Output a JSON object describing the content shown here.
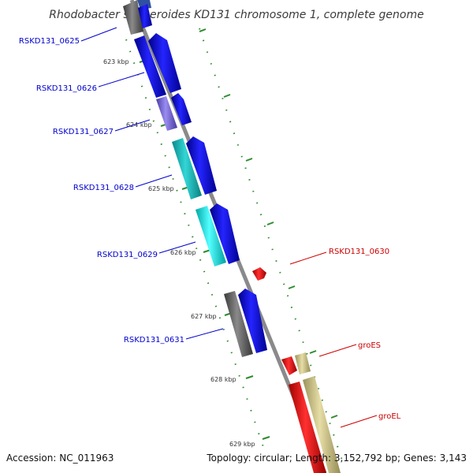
{
  "title": "Rhodobacter sphaeroides KD131 chromosome 1, complete genome",
  "footer": {
    "accession": "Accession: NC_011963",
    "topology": "Topology: circular; Length: 3,152,792 bp; Genes: 3,143"
  },
  "ruler_labels": [
    "623 kbp",
    "624 kbp",
    "625 kbp",
    "626 kbp",
    "627 kbp",
    "628 kbp",
    "629 kbp"
  ],
  "gene_labels": {
    "rskd131_0625": "RSKD131_0625",
    "rskd131_0626": "RSKD131_0626",
    "rskd131_0627": "RSKD131_0627",
    "rskd131_0628": "RSKD131_0628",
    "rskd131_0629": "RSKD131_0629",
    "rskd131_0630": "RSKD131_0630",
    "rskd131_0631": "RSKD131_0631",
    "groES": "groES",
    "groEL": "groEL"
  },
  "colors": {
    "backbone": "#8a8a8a",
    "ruler_tick": "#2e8b2e",
    "gene_blue": "#1010dd",
    "gene_cyan": "#22dddd",
    "gene_teal": "#1cc4c4",
    "gene_purple": "#7a6ad8",
    "gene_gray": "#5f5f5f",
    "gene_red": "#ee1111",
    "gene_khaki": "#c8c088",
    "label_blue": "#0000cc",
    "label_red": "#cc0000"
  }
}
